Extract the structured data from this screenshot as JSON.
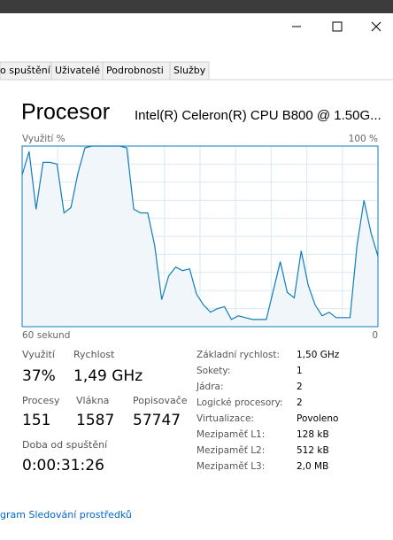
{
  "tabs": [
    "o spuštění",
    "Uživatelé",
    "Podrobnosti",
    "Služby"
  ],
  "header": {
    "title": "Procesor",
    "cpu_name": "Intel(R) Celeron(R) CPU B800 @ 1.50G..."
  },
  "graph": {
    "y_label": "Využití %",
    "y_max_label": "100 %",
    "x_left_label": "60 sekund",
    "x_right_label": "0",
    "ylim": [
      0,
      100
    ],
    "values": [
      84,
      97,
      65,
      91,
      91,
      90,
      63,
      66,
      85,
      99,
      100,
      100,
      100,
      100,
      100,
      99,
      65,
      63,
      63,
      45,
      15,
      28,
      33,
      31,
      32,
      18,
      12,
      8,
      10,
      11,
      4,
      6,
      5,
      4,
      4,
      4,
      20,
      36,
      19,
      16,
      42,
      23,
      12,
      6,
      8,
      5,
      5,
      5,
      45,
      70,
      52,
      39
    ]
  },
  "stats": [
    {
      "label": "Využití",
      "value": "37%"
    },
    {
      "label": "Rychlost",
      "value": "1,49 GHz"
    },
    {
      "label": "Procesy",
      "value": "151"
    },
    {
      "label": "Vlákna",
      "value": "1587"
    },
    {
      "label": "Popisovače",
      "value": "57747"
    },
    {
      "label": "Doba od spuštění",
      "value": "0:00:31:26"
    }
  ],
  "details": [
    {
      "label": "Základní rychlost:",
      "value": "1,50 GHz"
    },
    {
      "label": "Sokety:",
      "value": "1"
    },
    {
      "label": "Jádra:",
      "value": "2"
    },
    {
      "label": "Logické procesory:",
      "value": "2"
    },
    {
      "label": "Virtualizace:",
      "value": "Povoleno"
    },
    {
      "label": "Mezipaměť L1:",
      "value": "128 kB"
    },
    {
      "label": "Mezipaměť L2:",
      "value": "512 kB"
    },
    {
      "label": "Mezipaměť L3:",
      "value": "2,0 MB"
    }
  ],
  "footer_link": "gram Sledování prostředků"
}
